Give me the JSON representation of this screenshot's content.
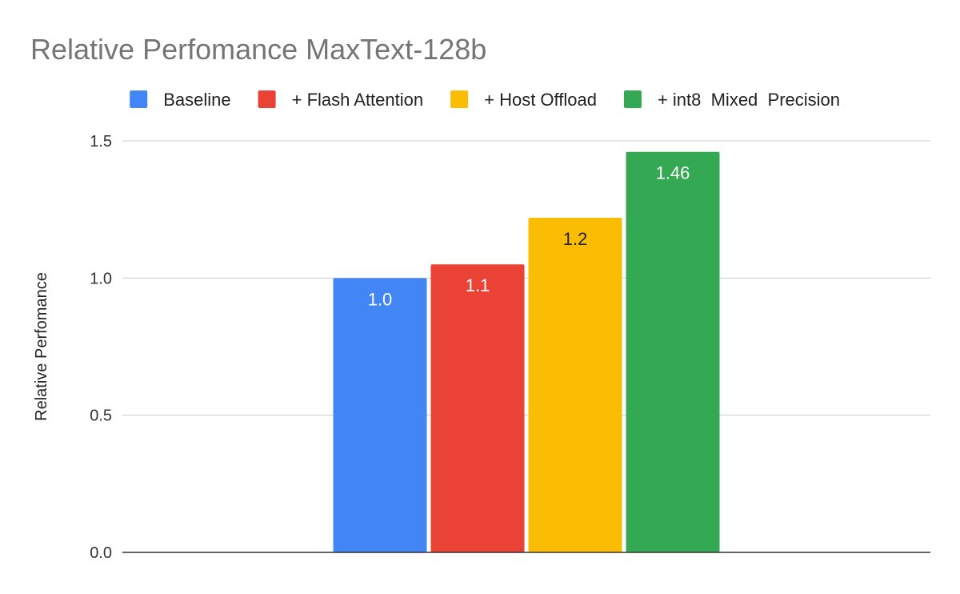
{
  "chart_data": {
    "type": "bar",
    "title": "Relative Perfomance MaxText-128b",
    "ylabel": "Relative Perfomance",
    "xlabel": "",
    "ylim": [
      0,
      1.5
    ],
    "yticks": [
      0.0,
      0.5,
      1.0,
      1.5
    ],
    "ytick_labels": [
      "0.0",
      "0.5",
      "1.0",
      "1.5"
    ],
    "grid": true,
    "legend_position": "top",
    "series": [
      {
        "name": "Baseline",
        "value": 1.0,
        "label": "1.0",
        "color": "#4285f4",
        "label_color": "#ffffff"
      },
      {
        "name": "+ Flash Attention",
        "value": 1.05,
        "label": "1.1",
        "color": "#ea4335",
        "label_color": "#ffffff"
      },
      {
        "name": "+ Host Offload",
        "value": 1.22,
        "label": "1.2",
        "color": "#fbbc04",
        "label_color": "#222222"
      },
      {
        "name": "+ int8  Mixed  Precision",
        "value": 1.46,
        "label": "1.46",
        "color": "#34a853",
        "label_color": "#ffffff"
      }
    ]
  }
}
